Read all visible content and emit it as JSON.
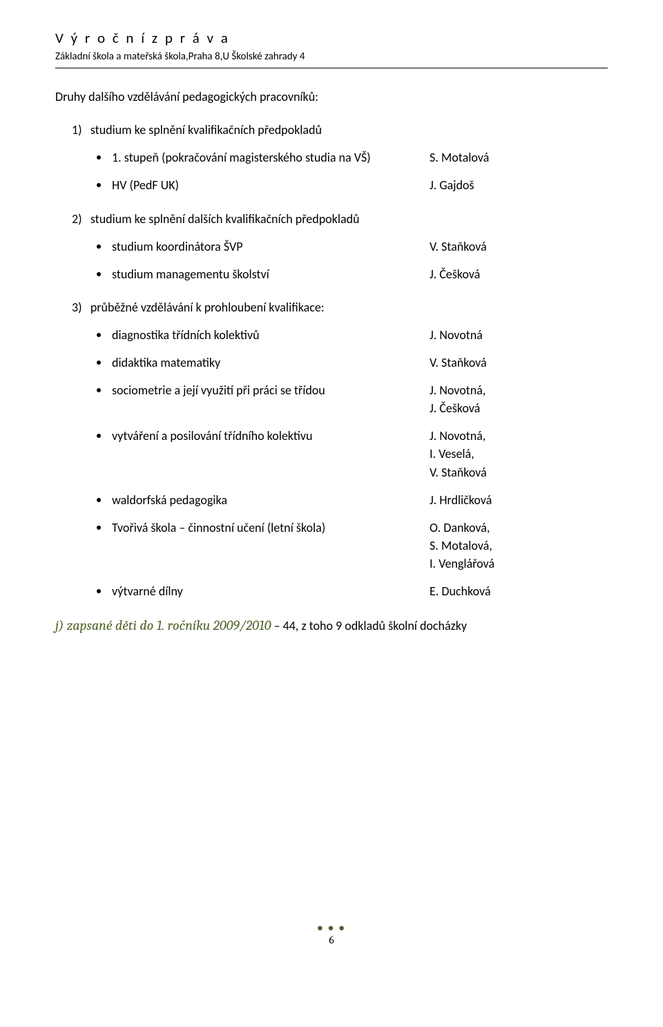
{
  "header": {
    "title": "V ý r o č n í   z p r á v a",
    "subtitle": "Základní škola a mateřská škola,Praha 8,U Školské zahrady 4"
  },
  "intro": "Druhy dalšího vzdělávání pedagogických pracovníků:",
  "section1": {
    "num": "1)",
    "label": "studium ke splnění kvalifikačních předpokladů",
    "items": [
      {
        "label": "1. stupeň (pokračování magisterského studia na VŠ)",
        "value": "S. Motalová"
      },
      {
        "label": "HV (PedF UK)",
        "value": "J. Gajdoš"
      }
    ]
  },
  "section2": {
    "num": "2)",
    "label": "studium ke splnění dalších kvalifikačních předpokladů",
    "items": [
      {
        "label": "studium koordinátora ŠVP",
        "value": "V. Staňková"
      },
      {
        "label": "studium managementu školství",
        "value": "J. Češková"
      }
    ]
  },
  "section3": {
    "num": "3)",
    "label": "průběžné vzdělávání k prohloubení kvalifikace:",
    "items": [
      {
        "label": "diagnostika třídních kolektivů",
        "value": "J. Novotná"
      },
      {
        "label": "didaktika matematiky",
        "value": "V. Staňková"
      },
      {
        "label": "sociometrie a její využití při práci se třídou",
        "value": "J. Novotná,\nJ. Češková"
      },
      {
        "label": "vytváření a posilování třídního kolektivu",
        "value": "J. Novotná,\nI. Veselá,\nV. Staňková"
      },
      {
        "label": "waldorfská pedagogika",
        "value": "J. Hrdličková"
      },
      {
        "label": "Tvořivá škola – činnostní učení (letní škola)",
        "value": "O. Danková,\nS. Motalová,\nI. Venglářová"
      },
      {
        "label": "výtvarné dílny",
        "value": "E. Duchková"
      }
    ]
  },
  "sectionJ": {
    "prefix": "j) zapsané děti do 1. ročníku 2009/2010",
    "rest": " – 44, z toho 9 odkladů školní docházky"
  },
  "footer": {
    "page": "6"
  }
}
